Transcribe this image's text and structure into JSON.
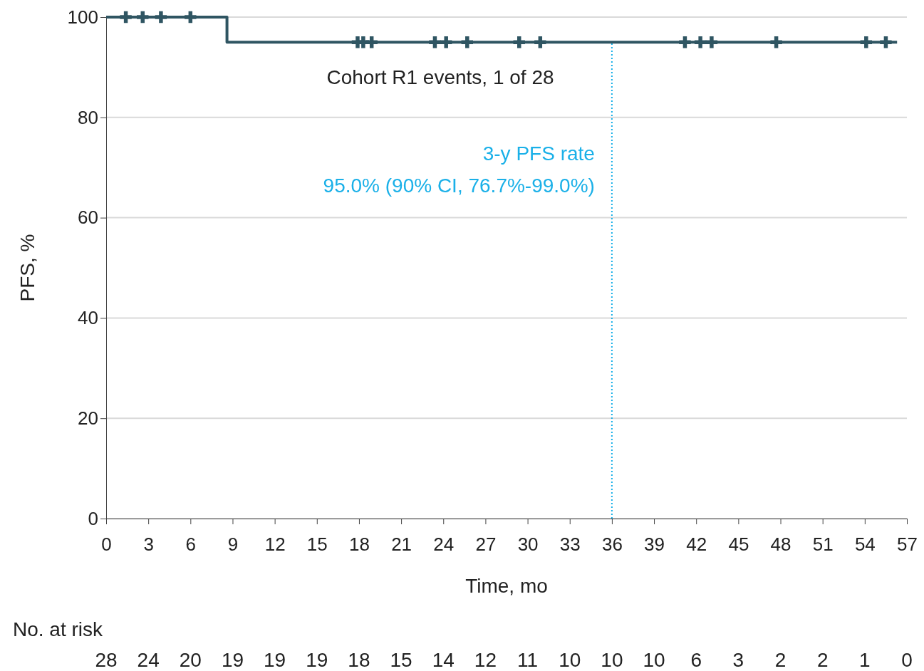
{
  "chart_data": {
    "type": "step",
    "xlabel": "Time, mo",
    "ylabel": "PFS, %",
    "xlim": [
      0,
      57
    ],
    "xticks": [
      0,
      3,
      6,
      9,
      12,
      15,
      18,
      21,
      24,
      27,
      30,
      33,
      36,
      39,
      42,
      45,
      48,
      51,
      54,
      57
    ],
    "ylim": [
      0,
      100
    ],
    "yticks": [
      0,
      20,
      40,
      60,
      80,
      100
    ],
    "grid": "y",
    "series": [
      {
        "color": "#2f5562",
        "x": [
          0,
          8.6,
          56.3
        ],
        "values": [
          100,
          95,
          95
        ]
      },
      {
        "type": "scatter",
        "color": "#2f5562",
        "marker": "cross",
        "x": [
          1.4,
          2.6,
          3.9,
          6.0,
          17.9,
          18.3,
          18.9,
          23.4,
          24.2,
          25.7,
          29.4,
          30.9,
          41.2,
          42.3,
          43.1,
          47.7,
          54.1,
          55.5
        ],
        "values": [
          100,
          100,
          100,
          100,
          95,
          95,
          95,
          95,
          95,
          95,
          95,
          95,
          95,
          95,
          95,
          95,
          95,
          95
        ]
      }
    ],
    "ref_lines": [
      {
        "axis": "x",
        "value": 36,
        "label": "3-y PFS rate\n95.0% (90% CI, 76.7%-99.0%)",
        "color": "#1ab0e8",
        "line_style": "dotted"
      }
    ],
    "annotations": [
      "Cohort R1 events, 1 of 28",
      "No. at risk",
      "28",
      "24",
      "20",
      "19",
      "19",
      "19",
      "18",
      "15",
      "14",
      "12",
      "11",
      "10",
      "10",
      "10",
      "6",
      "3",
      "2",
      "2",
      "1",
      "0"
    ]
  }
}
